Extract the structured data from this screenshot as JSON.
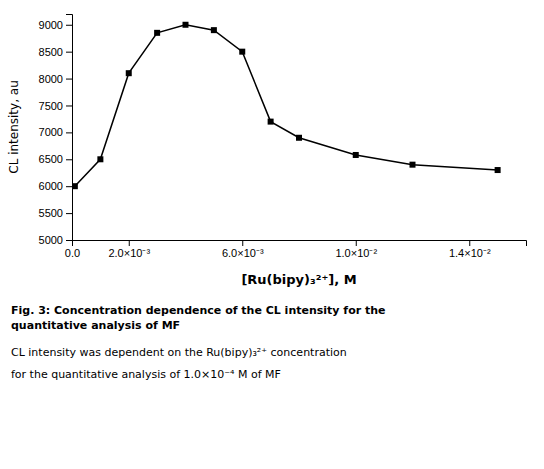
{
  "chart_data": {
    "type": "line",
    "x": [
      0.0001,
      0.001,
      0.002,
      0.003,
      0.004,
      0.005,
      0.006,
      0.007,
      0.008,
      0.01,
      0.012,
      0.015
    ],
    "values": [
      6000,
      6500,
      8100,
      8850,
      9000,
      8900,
      8500,
      7200,
      6900,
      6580,
      6400,
      6300
    ],
    "xlim": [
      0,
      0.016
    ],
    "ylim": [
      5000,
      9200
    ],
    "xticks": [
      {
        "value": 0.0,
        "label": "0.0"
      },
      {
        "value": 0.002,
        "label": "2.0×10⁻³"
      },
      {
        "value": 0.006,
        "label": "6.0×10⁻³"
      },
      {
        "value": 0.01,
        "label": "1.0×10⁻²"
      },
      {
        "value": 0.014,
        "label": "1.4×10⁻²"
      }
    ],
    "yticks": [
      5000,
      5500,
      6000,
      6500,
      7000,
      7500,
      8000,
      8500,
      9000
    ],
    "x_label": "[Ru(bipy)₃²⁺], M",
    "y_label": "CL intensity, au",
    "color": "#000000",
    "marker": "square",
    "grid": false,
    "annotations": [
      "Fig. 3: Concentration dependence of the CL intensity for the\nquantitative analysis of MF",
      "CL intensity was dependent on the Ru(bipy)₃²⁺ concentration",
      "for the quantitative analysis of 1.0×10⁻⁴ M of MF"
    ]
  }
}
